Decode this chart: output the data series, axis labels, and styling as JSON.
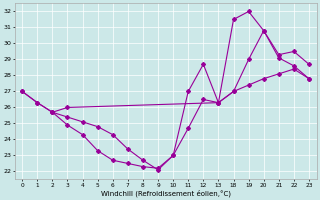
{
  "background_color": "#cce8e8",
  "line_color": "#990099",
  "xlabel": "Windchill (Refroidissement éolien,°C)",
  "ylim": [
    21.5,
    32.5
  ],
  "yticks": [
    22,
    23,
    24,
    25,
    26,
    27,
    28,
    29,
    30,
    31,
    32
  ],
  "xlabels": [
    "0",
    "1",
    "2",
    "3",
    "4",
    "5",
    "6",
    "7",
    "8",
    "9",
    "10",
    "11",
    "12",
    "13",
    "18",
    "19",
    "20",
    "21",
    "22",
    "23"
  ],
  "line1_idx": [
    0,
    1,
    2,
    3,
    4,
    5,
    6,
    7,
    8,
    9,
    10,
    11,
    12,
    13,
    14,
    15,
    16,
    17,
    18,
    19
  ],
  "line1_y": [
    27.0,
    26.3,
    25.7,
    24.9,
    24.3,
    23.3,
    22.7,
    22.5,
    22.3,
    22.2,
    23.0,
    27.0,
    28.7,
    26.3,
    27.0,
    29.0,
    30.8,
    29.1,
    28.6,
    27.8
  ],
  "line2_idx": [
    0,
    1,
    2,
    3,
    4,
    5,
    6,
    7,
    8,
    9,
    10,
    11,
    12,
    13,
    14,
    15,
    16,
    17,
    18,
    19
  ],
  "line2_y": [
    27.0,
    26.3,
    25.7,
    25.4,
    25.1,
    24.8,
    24.3,
    23.4,
    22.7,
    22.1,
    23.0,
    24.7,
    26.5,
    26.3,
    31.5,
    32.0,
    30.8,
    29.3,
    29.5,
    28.7
  ],
  "line3_idx": [
    2,
    3,
    13,
    14,
    15,
    16,
    17,
    18,
    19
  ],
  "line3_y": [
    25.7,
    26.0,
    26.3,
    27.0,
    27.4,
    27.8,
    28.1,
    28.4,
    27.8
  ]
}
